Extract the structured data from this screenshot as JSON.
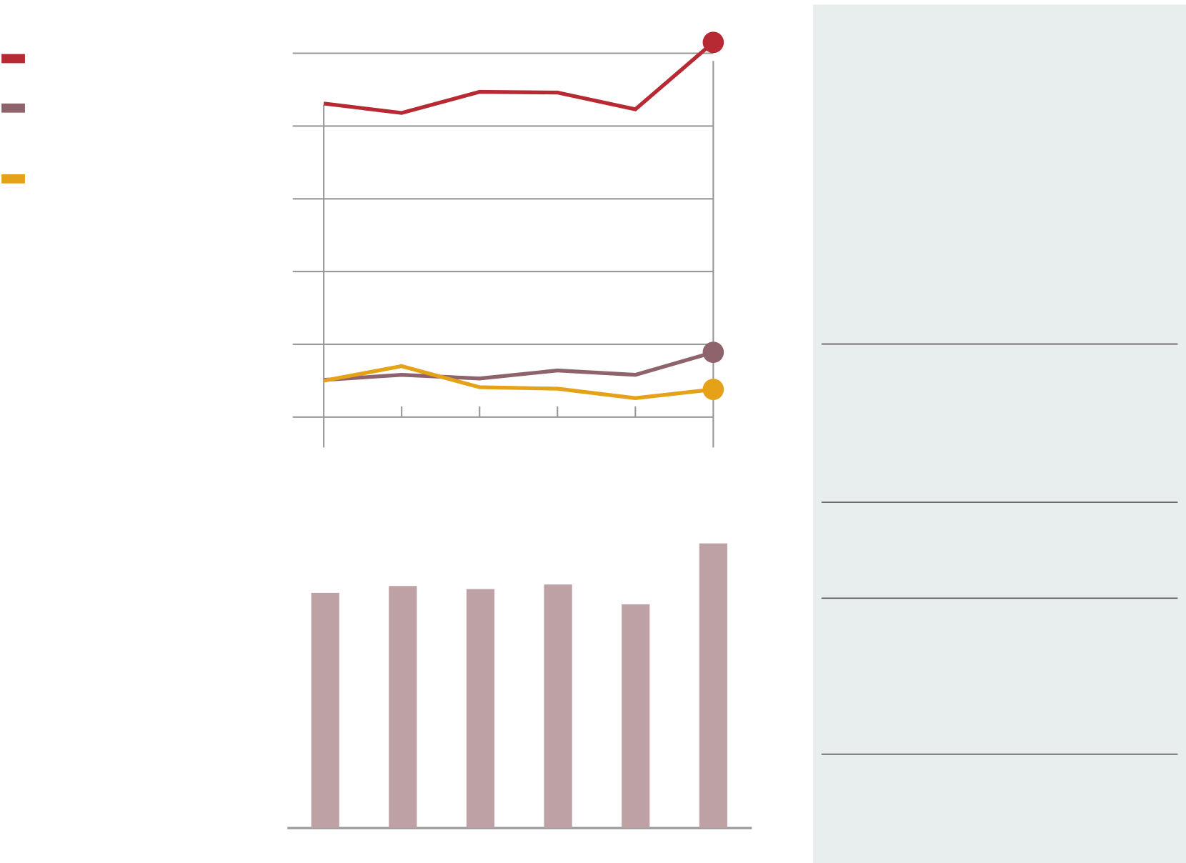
{
  "chart_data": [
    {
      "type": "line",
      "categories": [
        null,
        null,
        null,
        null,
        null,
        null
      ],
      "series": [
        {
          "color": "#b72a33",
          "values": [
            4.31,
            4.18,
            4.47,
            4.46,
            4.23,
            5.15
          ]
        },
        {
          "color": "#8e636b",
          "values": [
            0.51,
            0.58,
            0.53,
            0.64,
            0.58,
            0.89
          ]
        },
        {
          "color": "#e5a117",
          "values": [
            0.5,
            0.7,
            0.41,
            0.39,
            0.26,
            0.38
          ]
        }
      ],
      "ylim": [
        0,
        5
      ],
      "yticks": [
        0,
        1,
        2,
        3,
        4,
        5
      ],
      "grid": true
    },
    {
      "type": "bar",
      "categories": [
        null,
        null,
        null,
        null,
        null,
        null
      ],
      "values": [
        3.09,
        3.18,
        3.14,
        3.2,
        2.94,
        3.74
      ],
      "color": "#bea1a4",
      "ylim": [
        0,
        4
      ]
    }
  ]
}
